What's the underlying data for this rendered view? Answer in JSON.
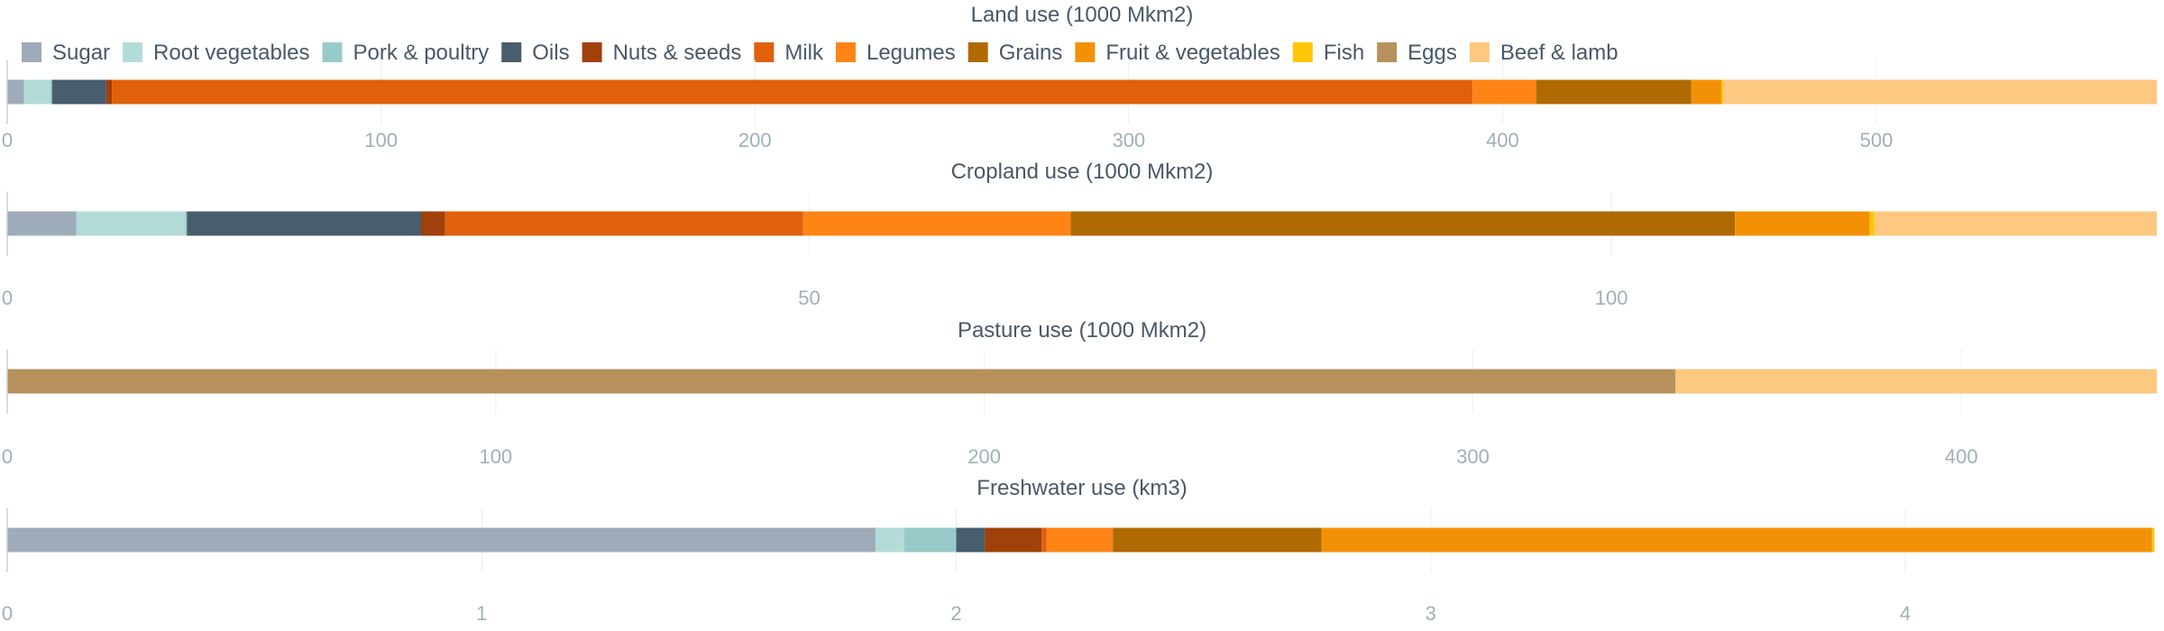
{
  "categories_legend": [
    "Sugar",
    "Root vegetables",
    "Pork & poultry",
    "Oils",
    "Nuts & seeds",
    "Milk",
    "Legumes",
    "Grains",
    "Fruit & vegetables",
    "Fish",
    "Eggs",
    "Beef & lamb"
  ],
  "colors": {
    "Sugar": "#9eabb9",
    "Root vegetables": "#b3dcd9",
    "Pork & poultry": "#97cac8",
    "Oils": "#485d6e",
    "Nuts & seeds": "#a0400a",
    "Milk": "#e0600c",
    "Legumes": "#fe8416",
    "Grains": "#b06a04",
    "Fruit & vegetables": "#f39106",
    "Fish": "#fec604",
    "Eggs": "#b7915b",
    "Beef & lamb": "#fdc87f"
  },
  "chart_data": [
    {
      "type": "bar",
      "orientation": "horizontal-stacked",
      "title": "Land use (1000 Mkm2)",
      "xlim": [
        0,
        575
      ],
      "ticks": [
        0,
        100,
        200,
        300,
        400,
        500
      ],
      "series": [
        {
          "name": "Sugar",
          "value": 4.5
        },
        {
          "name": "Root vegetables",
          "value": 7
        },
        {
          "name": "Pork & poultry",
          "value": 0.5
        },
        {
          "name": "Oils",
          "value": 14.5
        },
        {
          "name": "Nuts & seeds",
          "value": 1.5
        },
        {
          "name": "Milk",
          "value": 364
        },
        {
          "name": "Legumes",
          "value": 17
        },
        {
          "name": "Grains",
          "value": 41.5
        },
        {
          "name": "Fruit & vegetables",
          "value": 8
        },
        {
          "name": "Fish",
          "value": 0.5
        },
        {
          "name": "Eggs",
          "value": 0
        },
        {
          "name": "Beef & lamb",
          "value": 116
        }
      ]
    },
    {
      "type": "bar",
      "orientation": "horizontal-stacked",
      "title": "Cropland use (1000 Mkm2)",
      "xlim": [
        0,
        134
      ],
      "ticks": [
        0,
        50,
        100
      ],
      "series": [
        {
          "name": "Sugar",
          "value": 4.3
        },
        {
          "name": "Root vegetables",
          "value": 6.8
        },
        {
          "name": "Pork & poultry",
          "value": 0.1
        },
        {
          "name": "Oils",
          "value": 14.6
        },
        {
          "name": "Nuts & seeds",
          "value": 1.5
        },
        {
          "name": "Milk",
          "value": 22.3
        },
        {
          "name": "Legumes",
          "value": 16.7
        },
        {
          "name": "Grains",
          "value": 41.4
        },
        {
          "name": "Fruit & vegetables",
          "value": 8.4
        },
        {
          "name": "Fish",
          "value": 0.3
        },
        {
          "name": "Eggs",
          "value": 0
        },
        {
          "name": "Beef & lamb",
          "value": 17.6
        }
      ]
    },
    {
      "type": "bar",
      "orientation": "horizontal-stacked",
      "title": "Pasture use (1000 Mkm2)",
      "xlim": [
        0,
        440
      ],
      "ticks": [
        0,
        100,
        200,
        300,
        400
      ],
      "series": [
        {
          "name": "Sugar",
          "value": 0
        },
        {
          "name": "Root vegetables",
          "value": 0
        },
        {
          "name": "Pork & poultry",
          "value": 0
        },
        {
          "name": "Oils",
          "value": 0
        },
        {
          "name": "Nuts & seeds",
          "value": 0
        },
        {
          "name": "Milk",
          "value": 0
        },
        {
          "name": "Legumes",
          "value": 0
        },
        {
          "name": "Grains",
          "value": 0
        },
        {
          "name": "Fruit & vegetables",
          "value": 0
        },
        {
          "name": "Fish",
          "value": 0
        },
        {
          "name": "Eggs",
          "value": 341.5
        },
        {
          "name": "Beef & lamb",
          "value": 98.5
        }
      ]
    },
    {
      "type": "bar",
      "orientation": "horizontal-stacked",
      "title": "Freshwater use (km3)",
      "xlim": [
        0,
        4.53
      ],
      "ticks": [
        0,
        1,
        2,
        3,
        4
      ],
      "series": [
        {
          "name": "Sugar",
          "value": 1.83
        },
        {
          "name": "Root vegetables",
          "value": 0.06
        },
        {
          "name": "Pork & poultry",
          "value": 0.11
        },
        {
          "name": "Oils",
          "value": 0.06
        },
        {
          "name": "Nuts & seeds",
          "value": 0.12
        },
        {
          "name": "Milk",
          "value": 0.01
        },
        {
          "name": "Legumes",
          "value": 0.14
        },
        {
          "name": "Grains",
          "value": 0.44
        },
        {
          "name": "Fruit & vegetables",
          "value": 1.75
        },
        {
          "name": "Fish",
          "value": 0.005
        },
        {
          "name": "Eggs",
          "value": 0
        },
        {
          "name": "Beef & lamb",
          "value": 0
        }
      ]
    }
  ]
}
